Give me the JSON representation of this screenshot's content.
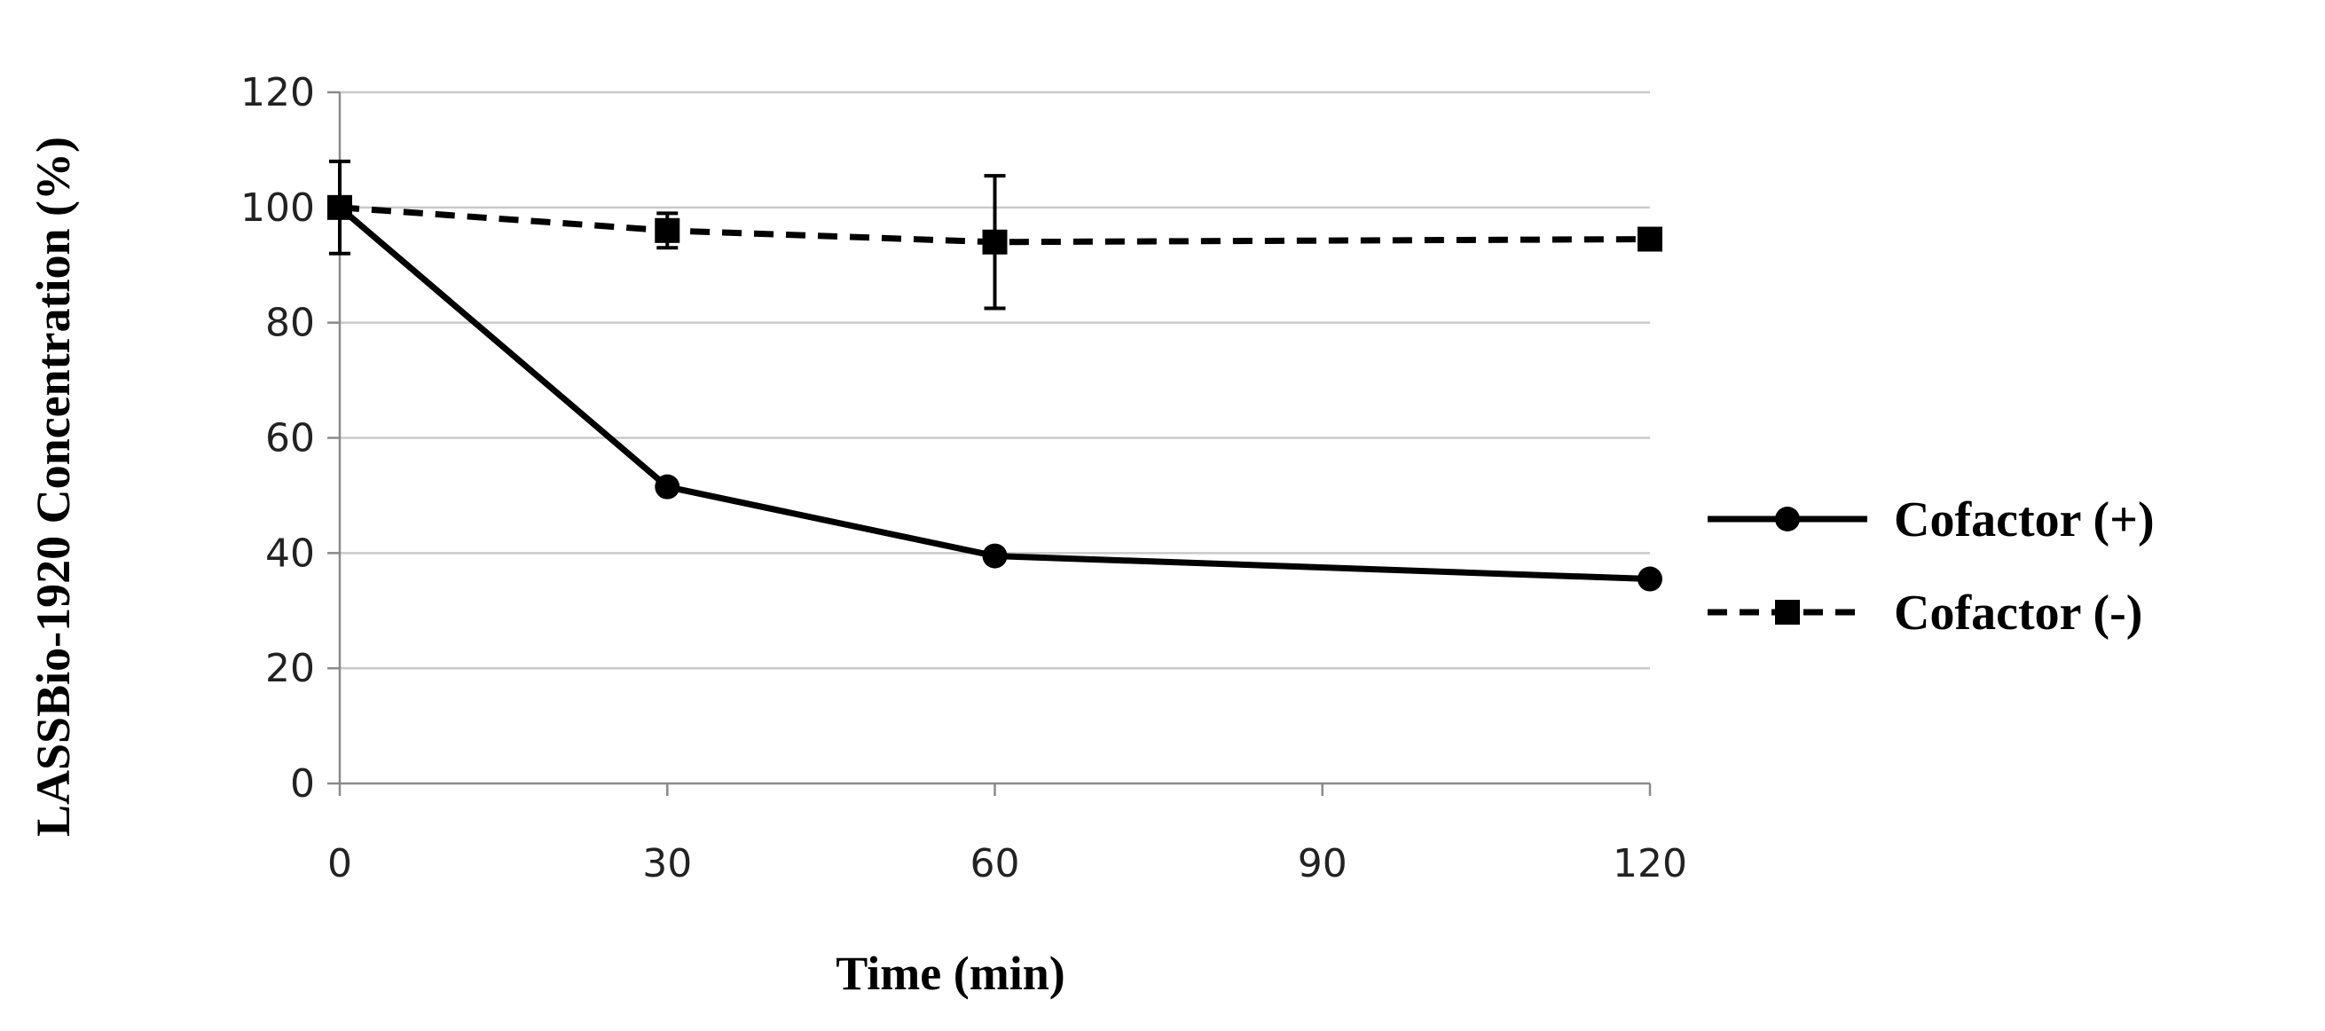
{
  "chart_data": {
    "type": "line",
    "title": "",
    "xlabel": "Time (min)",
    "ylabel": "LASSBio-1920 Concentration (%)",
    "x": [
      0,
      30,
      60,
      120
    ],
    "x_ticks": [
      "0",
      "30",
      "60",
      "90",
      "120"
    ],
    "x_tick_values": [
      0,
      30,
      60,
      90,
      120
    ],
    "y_ticks": [
      "0",
      "20",
      "40",
      "60",
      "80",
      "100",
      "120"
    ],
    "y_tick_values": [
      0,
      20,
      40,
      60,
      80,
      100,
      120
    ],
    "xlim": [
      0,
      120
    ],
    "ylim": [
      0,
      120
    ],
    "grid": "horizontal",
    "legend_position": "right",
    "series": [
      {
        "name": "Cofactor (+)",
        "values": [
          100,
          51.5,
          39.5,
          35.5
        ],
        "errors": [
          0,
          0,
          0,
          0
        ],
        "line_style": "solid",
        "marker": "circle",
        "color": "#000000"
      },
      {
        "name": "Cofactor (-)",
        "values": [
          100,
          96,
          94,
          94.5
        ],
        "errors": [
          8,
          3,
          11.5,
          0
        ],
        "line_style": "dashed",
        "marker": "square",
        "color": "#000000"
      }
    ]
  }
}
